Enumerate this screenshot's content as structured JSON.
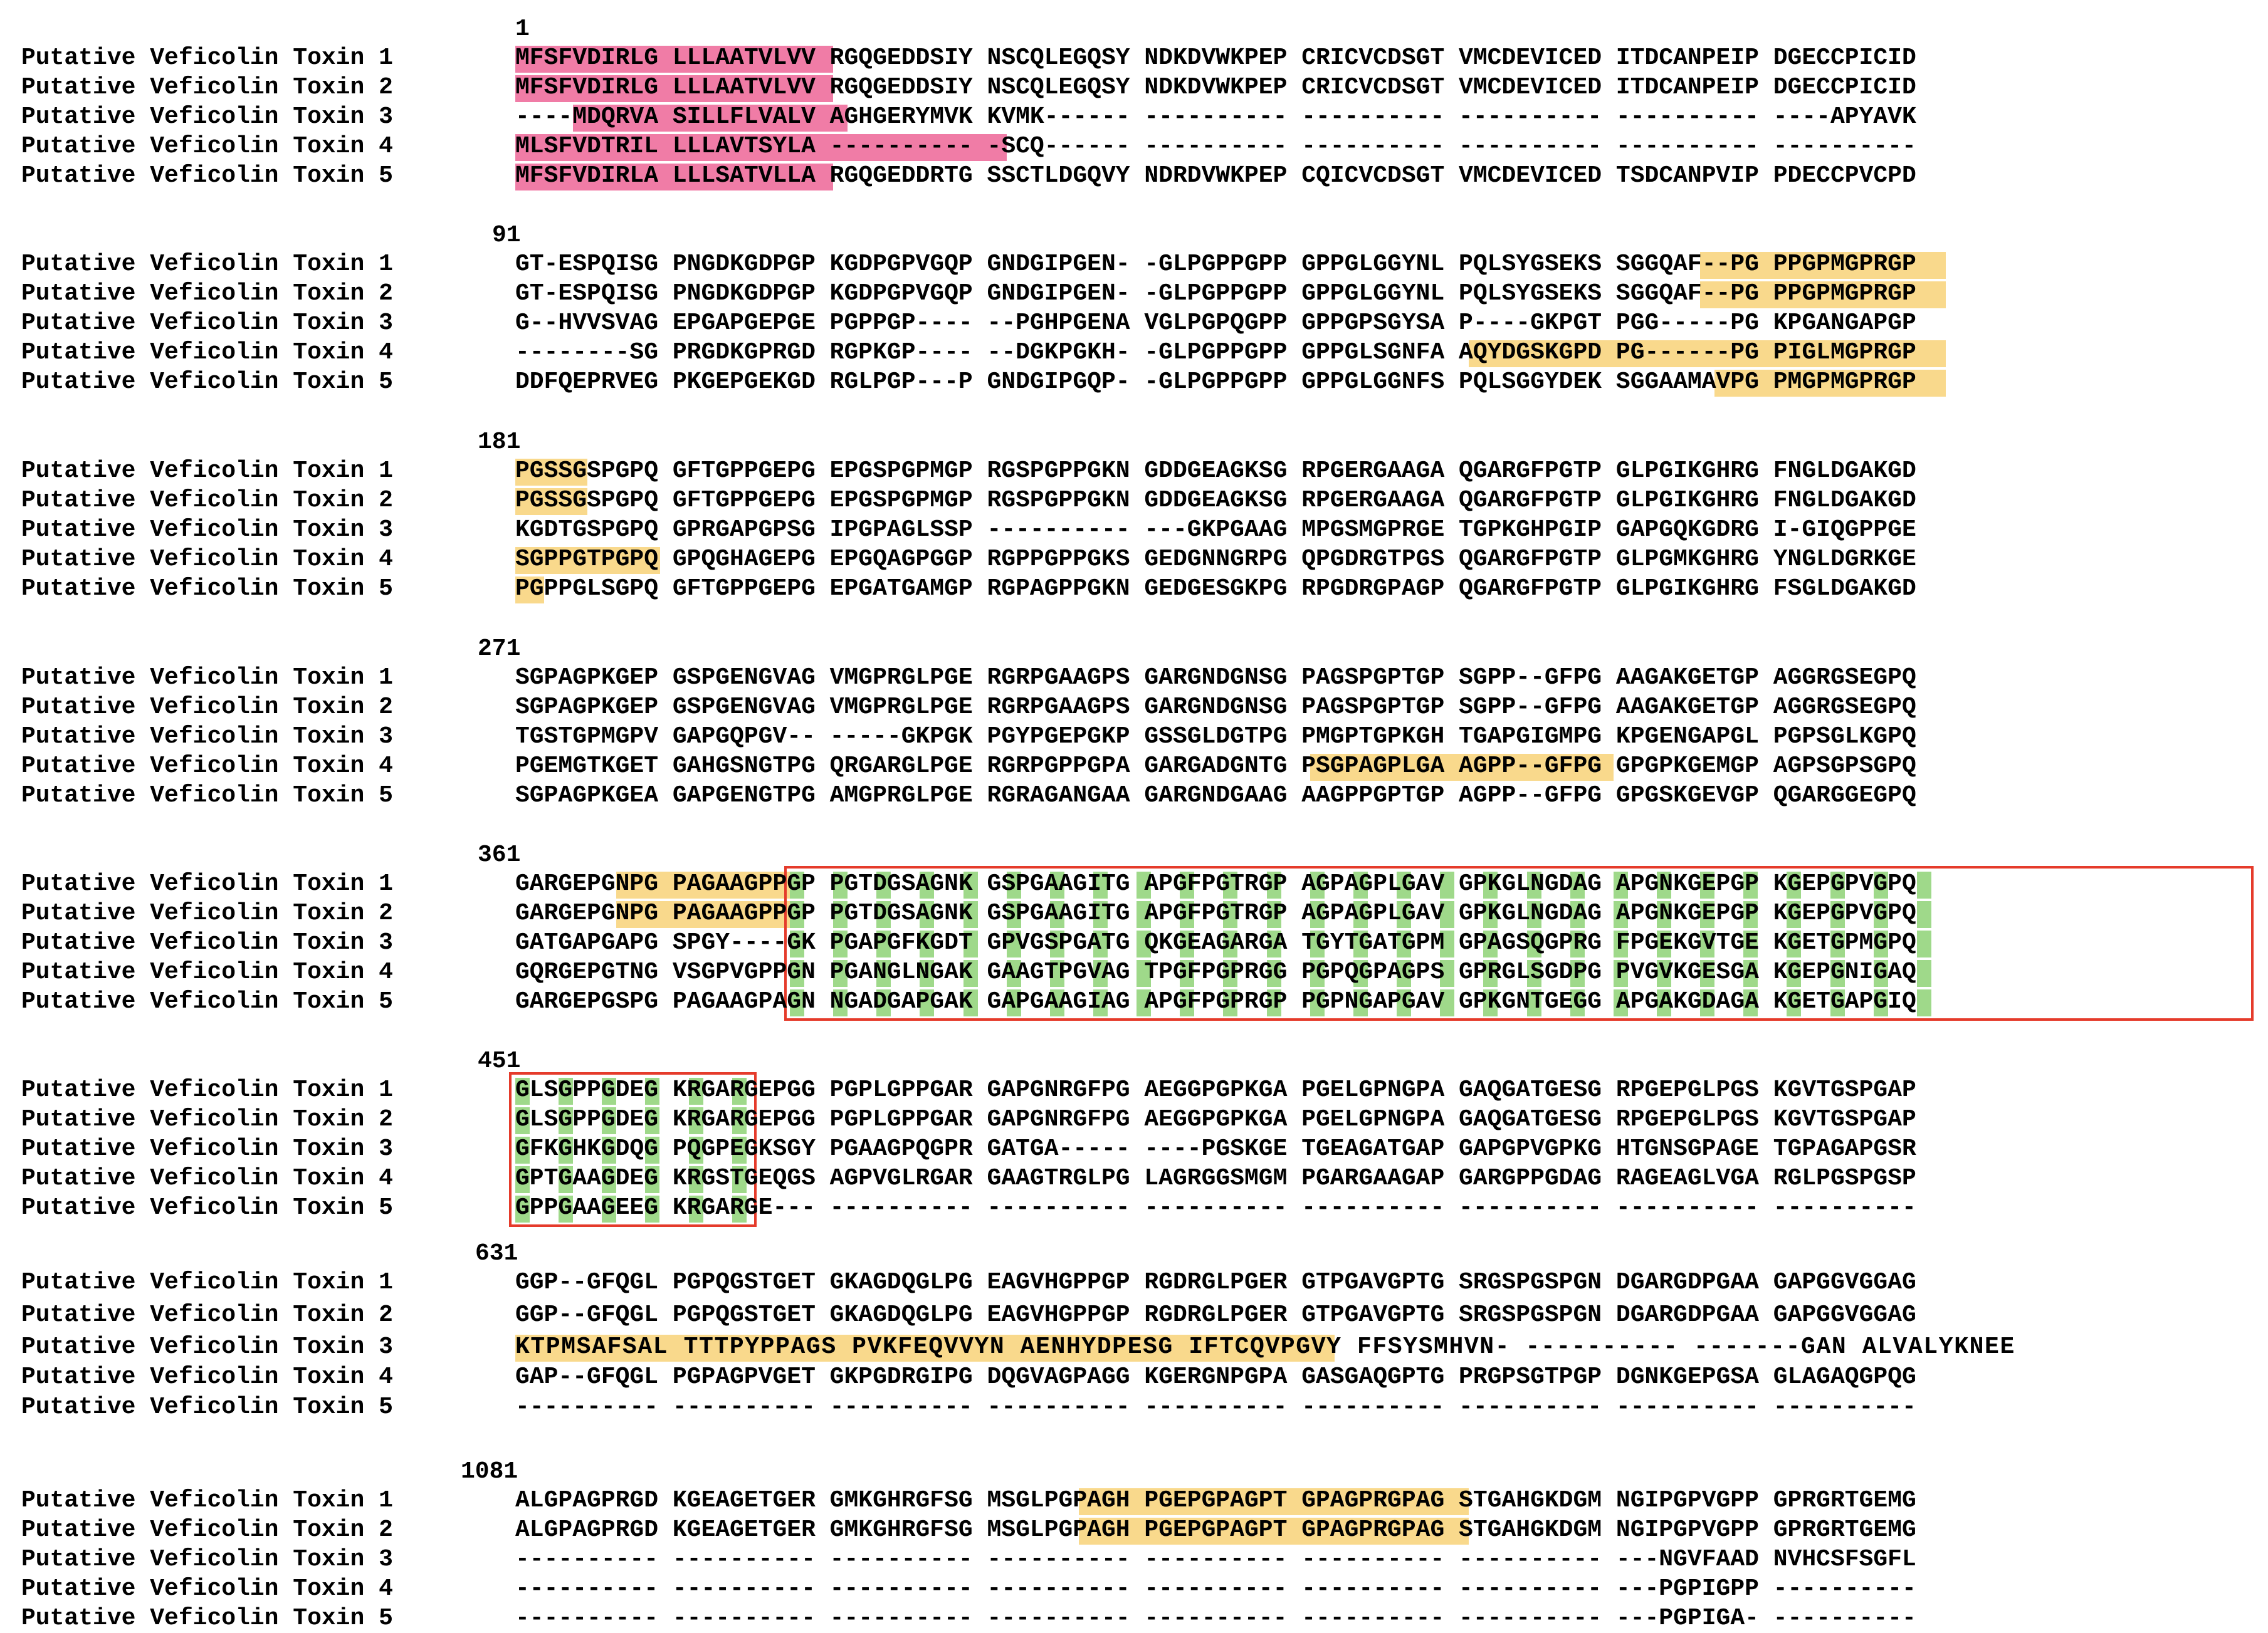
{
  "alignment": {
    "sequence_names": [
      "Putative Veficolin Toxin 1",
      "Putative Veficolin Toxin 2",
      "Putative Veficolin Toxin 3",
      "Putative Veficolin Toxin 4",
      "Putative Veficolin Toxin 5"
    ],
    "colors": {
      "signal_peptide": "#f07ca6",
      "region": "#f9d98c",
      "conserved": "#9fd98a",
      "box": "#e53b2b"
    },
    "blocks": [
      {
        "start": "1",
        "rows": [
          "MFSFVDIRLG LLLAATVLVV RGQGEDDSIY NSCQLEGQSY NDKDVWKPEP CRICVCDSGT VMCDEVICED ITDCANPEIP DGECCPICID",
          "MFSFVDIRLG LLLAATVLVV RGQGEDDSIY NSCQLEGQSY NDKDVWKPEP CRICVCDSGT VMCDEVICED ITDCANPEIP DGECCPICID",
          "----MDQRVA SILLFLVALV AGHGERYMVK KVMK------ ---------- ---------- ---------- ---------- ----APYAVK",
          "MLSFVDTRIL LLLAVTSYLA ---------- -SCQ------ ---------- ---------- ---------- ---------- ----------",
          "MFSFVDIRLA LLLSATVLLA RGQGEDDRTG SSCTLDGQVY NDRDVWKPEP CQICVCDSGT VMCDEVICED TSDCANPVIP PDECCPVCPD"
        ]
      },
      {
        "start": "91",
        "rows": [
          "GT-ESPQISG PNGDKGDPGP KGDPGPVGQP GNDGIPGEN- -GLPGPPGPP GPPGLGGYNL PQLSYGSEKS SGGQAF--PG PPGPMGPRGP",
          "GT-ESPQISG PNGDKGDPGP KGDPGPVGQP GNDGIPGEN- -GLPGPPGPP GPPGLGGYNL PQLSYGSEKS SGGQAF--PG PPGPMGPRGP",
          "G--HVVSVAG EPGAPGEPGE PGPPGP---- --PGHPGENA VGLPGPQGPP GPPGPSGYSA P----GKPGT PGG-----PG KPGANGAPGP",
          "--------SG PRGDKGPRGD RGPKGP---- --DGKPGKH- -GLPGPPGPP GPPGLSGNFA AQYDGSKGPD PG------PG PIGLMGPRGP",
          "DDFQEPRVEG PKGEPGEKGD RGLPGP---P GNDGIPGQP- -GLPGPPGPP GPPGLGGNFS PQLSGGYDEK SGGAAMAVPG PMGPMGPRGP"
        ]
      },
      {
        "start": "181",
        "rows": [
          "PGSSGSPGPQ GFTGPPGEPG EPGSPGPMGP RGSPGPPGKN GDDGEAGKSG RPGERGAAGA QGARGFPGTP GLPGIKGHRG FNGLDGAKGD",
          "PGSSGSPGPQ GFTGPPGEPG EPGSPGPMGP RGSPGPPGKN GDDGEAGKSG RPGERGAAGA QGARGFPGTP GLPGIKGHRG FNGLDGAKGD",
          "KGDTGSPGPQ GPRGAPGPSG IPGPAGLSSP ---------- ---GKPGAAG MPGSMGPRGE TGPKGHPGIP GAPGQKGDRG I-GIQGPPGE",
          "SGPPGTPGPQ GPQGHAGEPG EPGQAGPGGP RGPPGPPGKS GEDGNNGRPG QPGDRGTPGS QGARGFPGTP GLPGMKGHRG YNGLDGRKGE",
          "PGPPGLSGPQ GFTGPPGEPG EPGATGAMGP RGPAGPPGKN GEDGESGKPG RPGDRGPAGP QGARGFPGTP GLPGIKGHRG FSGLDGAKGD"
        ]
      },
      {
        "start": "271",
        "rows": [
          "SGPAGPKGEP GSPGENGVAG VMGPRGLPGE RGRPGAAGPS GARGNDGNSG PAGSPGPTGP SGPP--GFPG AAGAKGETGP AGGRGSEGPQ",
          "SGPAGPKGEP GSPGENGVAG VMGPRGLPGE RGRPGAAGPS GARGNDGNSG PAGSPGPTGP SGPP--GFPG AAGAKGETGP AGGRGSEGPQ",
          "TGSTGPMGPV GAPGQPGV-- -----GKPGK PGYPGEPGKP GSSGLDGTPG PMGPTGPKGH TGAPGIGMPG KPGENGAPGL PGPSGLKGPQ",
          "PGEMGTKGET GAHGSNGTPG QRGARGLPGE RGRPGPPGPA GARGADGNTG PSGPAGPLGA AGPP--GFPG GPGPKGEMGP AGPSGPSGPQ",
          "SGPAGPKGEA GAPGENGTPG AMGPRGLPGE RGRAGANGAA GARGNDGAAG AAGPPGPTGP AGPP--GFPG GPGSKGEVGP QGARGGEGPQ"
        ]
      },
      {
        "start": "361",
        "rows": [
          "GARGEPGNPG PAGAAGPPGP PGTDGSAGNK GSPGAAGITG APGFPGTRGP AGPAGPLGAV GPKGLNGDAG APGNKGEPGP KGEPGPVGPQ",
          "GARGEPGNPG PAGAAGPPGP PGTDGSAGNK GSPGAAGITG APGFPGTRGP AGPAGPLGAV GPKGLNGDAG APGNKGEPGP KGEPGPVGPQ",
          "GATGAPGAPG SPGY----GK PGAPGFKGDT GPVGSPGATG QKGEAGARGA TGYTGATGPM GPAGSQGPRG FPGEKGVTGE KGETGPMGPQ",
          "GQRGEPGTNG VSGPVGPPGN PGANGLNGAK GAAGTPGVAG TPGFPGPRGG PGPQGPAGPS GPRGLSGDPG PVGVKGESGA KGEPGNIGAQ",
          "GARGEPGSPG PAGAAGPAGN NGADGAPGAK GAPGAAGIAG APGFPGPRGP PGPNGAPGAV GPKGNTGEGG APGAKGDAGA KGETGAPGIQ"
        ]
      },
      {
        "start": "451",
        "rows": [
          "GLSGPPGDEG KRGARGEPGG PGPLGPPGAR GAPGNRGFPG AEGGPGPKGA PGELGPNGPA GAQGATGESG RPGEPGLPGS KGVTGSPGAP",
          "GLSGPPGDEG KRGARGEPGG PGPLGPPGAR GAPGNRGFPG AEGGPGPKGA PGELGPNGPA GAQGATGESG RPGEPGLPGS KGVTGSPGAP",
          "GFKGHKGDQG PQGPEGKSGY PGAAGPQGPR GATGA----- ----PGSKGE TGEAGATGAP GAPGPVGPKG HTGNSGPAGE TGPAGAPGSR",
          "GPTGAAGDEG KRGSTGEQGS AGPVGLRGAR GAAGTRGLPG LAGRGGSMGM PGARGAAGAP GARGPPGDAG RAGEAGLVGA RGLPGSPGSP",
          "GPPGAAGEEG KRGARGE--- ---------- ---------- ---------- ---------- ---------- ---------- ----------"
        ]
      },
      {
        "start": "631",
        "rows": [
          "GGP--GFQGL PGPQGSTGET GKAGDQGLPG EAGVHGPPGP RGDRGLPGER GTPGAVGPTG SRGSPGSPGN DGARGDPGAA GAPGGVGGAG",
          "GGP--GFQGL PGPQGSTGET GKAGDQGLPG EAGVHGPPGP RGDRGLPGER GTPGAVGPTG SRGSPGSPGN DGARGDPGAA GAPGGVGGAG",
          "KTPMSAFSAL TTTPYPPAGS PVKFEQVVYN AENHYDPESG IFTCQVPGVY FFSYSMHVN- ---------- -------GAN ALVALYKNEE",
          "GAP--GFQGL PGPAGPVGET GKPGDRGIPG DQGVAGPAGG KGERGNPGPA GASGAQGPTG PRGPSGTPGP DGNKGEPGSA GLAGAQGPQG",
          "---------- ---------- ---------- ---------- ---------- ---------- ---------- ---------- ----------"
        ]
      },
      {
        "start": "1081",
        "rows": [
          "ALGPAGPRGD KGEAGETGER GMKGHRGFSG MSGLPGPAGH PGEPGPAGPT GPAGPRGPAG STGAHGKDGM NGIPGPVGPP GPRGRTGEMG",
          "ALGPAGPRGD KGEAGETGER GMKGHRGFSG MSGLPGPAGH PGEPGPAGPT GPAGPRGPAG STGAHGKDGM NGIPGPVGPP GPRGRTGEMG",
          "---------- ---------- ---------- ---------- ---------- ---------- ---------- ---NGVFAAD NVHCSFSGFL",
          "---------- ---------- ---------- ---------- ---------- ---------- ---------- ---PGPIGPP ----------",
          "---------- ---------- ---------- ---------- ---------- ---------- ---------- ---PGPIGA- ----------"
        ]
      }
    ]
  }
}
